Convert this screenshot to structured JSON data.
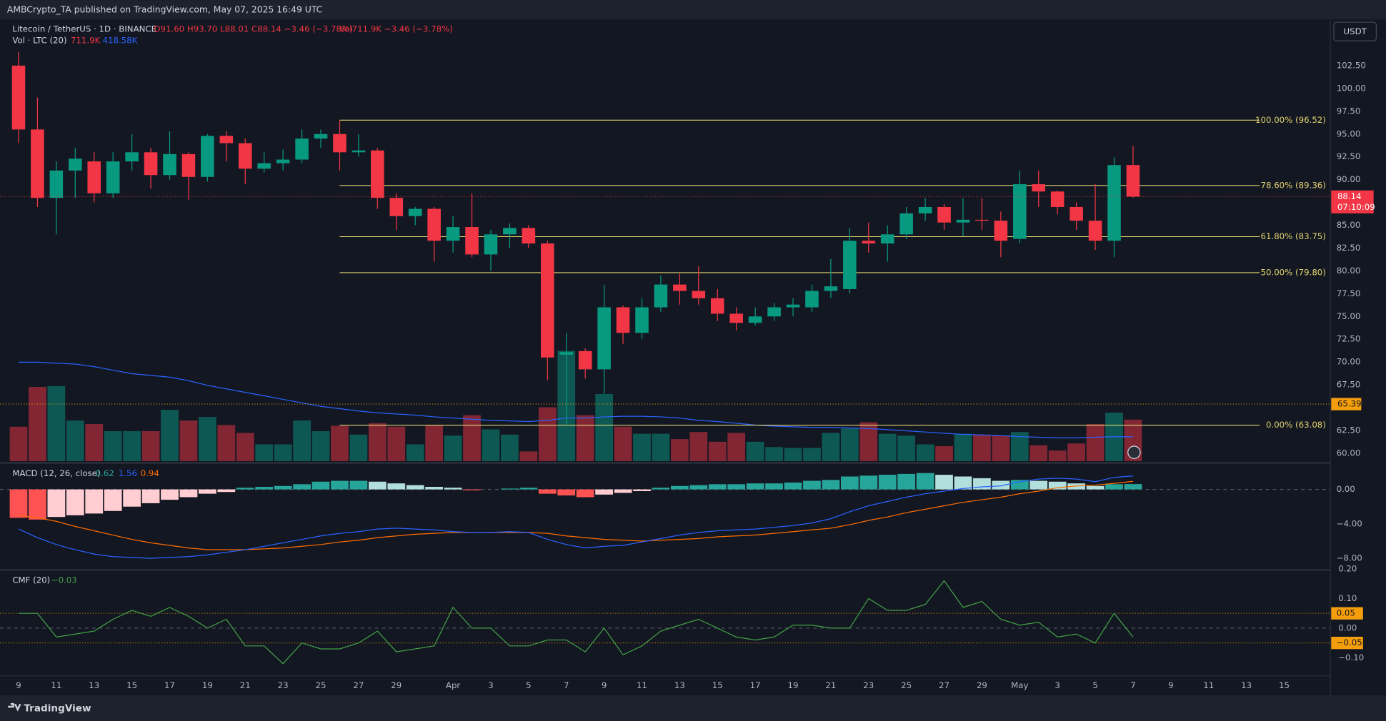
{
  "header": {
    "publisher": "AMBCrypto_TA published on TradingView.com, May 07, 2025 16:49 UTC",
    "currency": "USDT",
    "footer": "TradingView"
  },
  "chart_data": {
    "type": "candlestick",
    "title": "Litecoin / TetherUS · 1D · BINANCE",
    "ohlc_text": "O91.60 H93.70 L88.01 C88.14 −3.46 (−3.78%)",
    "vol_text": "Vol711.9K −3.46 (−3.78%)",
    "categories": [
      "9",
      null,
      "11",
      null,
      "13",
      null,
      "15",
      null,
      "17",
      null,
      "19",
      null,
      "21",
      null,
      "23",
      null,
      "25",
      null,
      "27",
      null,
      "29",
      null,
      null,
      "Apr",
      null,
      "3",
      null,
      "5",
      null,
      "7",
      null,
      "9",
      null,
      "11",
      null,
      "13",
      null,
      "15",
      null,
      "17",
      null,
      "19",
      null,
      "21",
      null,
      "23",
      null,
      "25",
      null,
      "27",
      null,
      "29",
      null,
      "May",
      null,
      "3",
      null,
      "5",
      null,
      "7"
    ],
    "extra_categories": [
      "9",
      "11",
      "13",
      "15"
    ],
    "open": [
      102.5,
      95.5,
      88,
      91,
      92,
      88.5,
      92,
      93,
      90.5,
      92.8,
      90.3,
      94.8,
      94,
      91.2,
      91.8,
      92.2,
      94.5,
      95,
      93,
      93.2,
      88,
      86,
      86.8,
      83.3,
      84.8,
      81.8,
      84,
      84.7,
      83,
      70.8,
      71.2,
      69.2,
      76,
      73.2,
      76,
      78.5,
      77.8,
      77,
      75.3,
      74.3,
      75,
      76,
      76,
      77.8,
      78,
      83.3,
      83,
      84,
      86.3,
      87,
      85.3,
      85.6,
      85.5,
      83.5,
      89.5,
      88.7,
      87,
      85.5,
      83.3,
      91.6
    ],
    "high": [
      104,
      99,
      92,
      93.5,
      93,
      93,
      95,
      93.5,
      95.3,
      93,
      95,
      95.3,
      94.5,
      93,
      93.3,
      95.5,
      95.5,
      96.52,
      95,
      93.5,
      88.5,
      87,
      87,
      86,
      88.5,
      84.5,
      85.2,
      85,
      83.3,
      73.2,
      71.5,
      78.5,
      76.2,
      77,
      79.5,
      79.7,
      80.5,
      78,
      76,
      76,
      76.5,
      77,
      78.5,
      81.3,
      84.7,
      85.3,
      85,
      87,
      88,
      87.3,
      88,
      88,
      86.5,
      91,
      91,
      88.8,
      87.5,
      89.5,
      92.5,
      93.7
    ],
    "low": [
      94,
      87,
      84,
      88,
      87.5,
      88,
      91,
      89,
      90,
      87.8,
      89.8,
      92,
      89.5,
      90.8,
      91,
      91.8,
      93.5,
      91,
      92.5,
      86.8,
      84.5,
      85,
      81,
      82,
      81.5,
      80,
      82.5,
      82.5,
      68,
      63.08,
      68.2,
      66.5,
      72,
      72.5,
      75.5,
      76.3,
      76.3,
      74.5,
      73.5,
      74,
      74.5,
      75,
      75.5,
      77,
      77.5,
      82,
      81,
      83.5,
      85.5,
      84.5,
      83.8,
      84.5,
      81.5,
      83,
      87,
      86.2,
      84.5,
      82.3,
      81.5,
      88.01
    ],
    "close": [
      95.5,
      88,
      91,
      92.3,
      88.5,
      92,
      93,
      90.5,
      92.8,
      90.3,
      94.8,
      94,
      91.2,
      91.8,
      92.2,
      94.5,
      95,
      93,
      93.2,
      88,
      86,
      86.8,
      83.3,
      84.8,
      81.8,
      84,
      84.7,
      83,
      70.5,
      71.1,
      69.2,
      76,
      73.2,
      76,
      78.5,
      77.8,
      77,
      75.3,
      74.3,
      75,
      76,
      76.3,
      77.8,
      78.3,
      83.3,
      83,
      84,
      86.3,
      87,
      85.3,
      85.6,
      85.5,
      83.3,
      89.5,
      88.7,
      87,
      85.5,
      83.3,
      91.6,
      88.14
    ],
    "up_color": "#089981",
    "down_color": "#f23645",
    "ylim": [
      59.13,
      107.55
    ],
    "yticks": [
      {
        "value": 60,
        "label": "60.00"
      },
      {
        "value": 62.5,
        "label": "62.50"
      },
      {
        "value": 65,
        "label": "65.00"
      },
      {
        "value": 67.5,
        "label": "67.50"
      },
      {
        "value": 70,
        "label": "70.00"
      },
      {
        "value": 72.5,
        "label": "72.50"
      },
      {
        "value": 75,
        "label": "75.00"
      },
      {
        "value": 77.5,
        "label": "77.50"
      },
      {
        "value": 80,
        "label": "80.00"
      },
      {
        "value": 82.5,
        "label": "82.50"
      },
      {
        "value": 85,
        "label": "85.00"
      },
      {
        "value": 87.5,
        "label": "87.50"
      },
      {
        "value": 90,
        "label": "90.00"
      },
      {
        "value": 92.5,
        "label": "92.50"
      },
      {
        "value": 95,
        "label": "95.00"
      },
      {
        "value": 97.5,
        "label": "97.50"
      },
      {
        "value": 100,
        "label": "100.00"
      },
      {
        "value": 102.5,
        "label": "102.50"
      }
    ],
    "last_price": {
      "value": 88.14,
      "label": "88.14"
    },
    "countdown": "07:10:09",
    "level": {
      "value": 65.39,
      "label": "65.39"
    },
    "fib_color": "#e3d26f",
    "fib": [
      {
        "value": 96.52,
        "label": "100.00% (96.52)"
      },
      {
        "value": 89.36,
        "label": "78.60% (89.36)"
      },
      {
        "value": 83.75,
        "label": "61.80% (83.75)"
      },
      {
        "value": 79.8,
        "label": "50.00% (79.80)"
      },
      {
        "value": 63.08,
        "label": "0.00% (63.08)"
      }
    ],
    "volume": {
      "title": "Vol · LTC (20)",
      "value_text": "711.9K",
      "ma_text": "418.58K",
      "lim": [
        0,
        7570
      ],
      "values": [
        591,
        1273,
        1288,
        697,
        636,
        515,
        515,
        515,
        879,
        697,
        758,
        621,
        485,
        288,
        288,
        697,
        515,
        606,
        455,
        651,
        591,
        288,
        621,
        439,
        788,
        545,
        455,
        167,
        924,
        1894,
        788,
        1151,
        591,
        470,
        470,
        379,
        500,
        333,
        485,
        333,
        242,
        227,
        227,
        485,
        561,
        667,
        470,
        439,
        288,
        258,
        470,
        455,
        439,
        500,
        273,
        182,
        303,
        636,
        833,
        711.9
      ],
      "ma": [
        1697,
        1697,
        1680,
        1665,
        1620,
        1560,
        1500,
        1470,
        1440,
        1380,
        1300,
        1240,
        1180,
        1120,
        1060,
        1000,
        940,
        900,
        860,
        830,
        810,
        790,
        760,
        740,
        720,
        700,
        690,
        680,
        700,
        740,
        740,
        760,
        770,
        770,
        760,
        740,
        700,
        680,
        650,
        620,
        600,
        590,
        580,
        580,
        570,
        560,
        540,
        520,
        500,
        480,
        460,
        450,
        440,
        420,
        410,
        400,
        400,
        410,
        420,
        418.58
      ],
      "ma_color": "#2962ff"
    },
    "macd": {
      "title": "MACD (12, 26, close)",
      "hist_text": "0.62",
      "macd_text": "1.56",
      "signal_text": "0.94",
      "ylim": [
        -9.13,
        2.97
      ],
      "yticks": [
        {
          "value": 0,
          "label": "0.00"
        },
        {
          "value": -4,
          "label": "−4.00"
        },
        {
          "value": -8,
          "label": "−8.00"
        }
      ],
      "hist": [
        -3.3,
        -3.5,
        -3.2,
        -3,
        -2.8,
        -2.5,
        -2,
        -1.6,
        -1.2,
        -0.9,
        -0.5,
        -0.3,
        0.2,
        0.3,
        0.4,
        0.6,
        0.9,
        1,
        1,
        0.9,
        0.7,
        0.5,
        0.3,
        0.2,
        -0.1,
        0,
        0.1,
        0.2,
        -0.5,
        -0.7,
        -0.9,
        -0.6,
        -0.4,
        -0.2,
        0.2,
        0.4,
        0.5,
        0.6,
        0.6,
        0.7,
        0.7,
        0.8,
        1,
        1.1,
        1.5,
        1.6,
        1.7,
        1.8,
        1.9,
        1.7,
        1.5,
        1.3,
        1,
        1.1,
        1,
        0.9,
        0.7,
        0.4,
        0.6,
        0.62
      ],
      "macd": [
        -4.6,
        -5.6,
        -6.4,
        -7,
        -7.5,
        -7.8,
        -7.9,
        -8,
        -7.9,
        -7.8,
        -7.6,
        -7.3,
        -7,
        -6.6,
        -6.2,
        -5.8,
        -5.4,
        -5.1,
        -4.9,
        -4.6,
        -4.5,
        -4.6,
        -4.7,
        -4.9,
        -5,
        -5,
        -4.9,
        -5,
        -5.8,
        -6.4,
        -6.8,
        -6.6,
        -6.5,
        -6.1,
        -5.7,
        -5.3,
        -5,
        -4.8,
        -4.7,
        -4.6,
        -4.4,
        -4.2,
        -3.9,
        -3.4,
        -2.6,
        -1.9,
        -1.4,
        -0.9,
        -0.5,
        -0.2,
        0.1,
        0.3,
        0.4,
        0.9,
        1.2,
        1.3,
        1.2,
        0.9,
        1.4,
        1.56
      ],
      "signal": [
        -3,
        -3.3,
        -3.7,
        -4.3,
        -4.8,
        -5.3,
        -5.8,
        -6.2,
        -6.5,
        -6.8,
        -7,
        -7,
        -7,
        -6.9,
        -6.8,
        -6.6,
        -6.4,
        -6.1,
        -5.9,
        -5.6,
        -5.4,
        -5.2,
        -5.1,
        -5,
        -5,
        -5,
        -5,
        -5,
        -5.1,
        -5.4,
        -5.6,
        -5.8,
        -5.9,
        -6,
        -5.9,
        -5.8,
        -5.7,
        -5.5,
        -5.4,
        -5.3,
        -5.1,
        -4.9,
        -4.7,
        -4.5,
        -4.1,
        -3.6,
        -3.2,
        -2.7,
        -2.3,
        -1.9,
        -1.5,
        -1.2,
        -0.9,
        -0.5,
        -0.2,
        0.2,
        0.4,
        0.5,
        0.7,
        0.94
      ],
      "macd_color": "#2962ff",
      "signal_color": "#ff6d00"
    },
    "cmf": {
      "title": "CMF (20)",
      "value_text": "−0.03",
      "ylim": [
        -0.161,
        0.194
      ],
      "color": "#43a047",
      "yticks": [
        {
          "value": 0.2,
          "label": "0.20"
        },
        {
          "value": 0.1,
          "label": "0.10"
        },
        {
          "value": 0,
          "label": "0.00"
        },
        {
          "value": -0.1,
          "label": "−0.10"
        }
      ],
      "levels": [
        {
          "value": 0.05,
          "label": "0.05"
        },
        {
          "value": -0.05,
          "label": "−0.05"
        }
      ],
      "values": [
        0.05,
        0.05,
        -0.03,
        -0.02,
        -0.01,
        0.03,
        0.06,
        0.04,
        0.07,
        0.04,
        0,
        0.03,
        -0.06,
        -0.06,
        -0.12,
        -0.05,
        -0.07,
        -0.07,
        -0.05,
        -0.01,
        -0.08,
        -0.07,
        -0.06,
        0.07,
        0,
        0,
        -0.06,
        -0.06,
        -0.04,
        -0.04,
        -0.08,
        0,
        -0.09,
        -0.06,
        -0.01,
        0.01,
        0.03,
        0,
        -0.03,
        -0.04,
        -0.03,
        0.01,
        0.01,
        0,
        0,
        0.1,
        0.06,
        0.06,
        0.08,
        0.16,
        0.07,
        0.09,
        0.03,
        0.01,
        0.02,
        -0.03,
        -0.02,
        -0.05,
        0.05,
        -0.03
      ]
    }
  }
}
